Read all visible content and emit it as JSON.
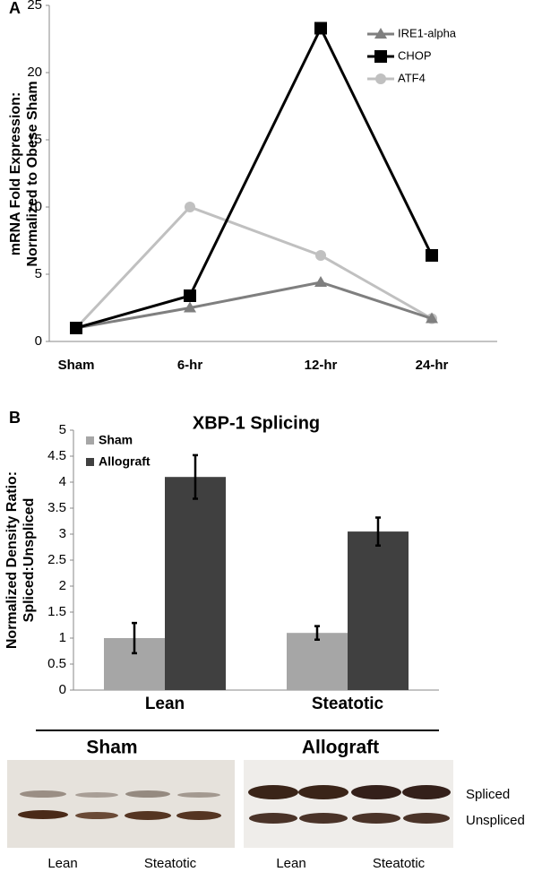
{
  "chart_data": [
    {
      "type": "line",
      "panel": "A",
      "y_label": [
        "mRNA Fold Expression:",
        "Normalized to Obese Sham"
      ],
      "categories": [
        "Sham",
        "6-hr",
        "12-hr",
        "24-hr"
      ],
      "series": [
        {
          "name": "IRE1-alpha",
          "color": "#7f7f7f",
          "marker": "triangle",
          "values": [
            1,
            2.5,
            4.4,
            1.7
          ]
        },
        {
          "name": "CHOP",
          "color": "#000000",
          "marker": "square",
          "values": [
            1,
            3.4,
            23.3,
            6.4
          ]
        },
        {
          "name": "ATF4",
          "color": "#c0c0c0",
          "marker": "circle",
          "values": [
            1,
            10,
            6.4,
            1.7
          ]
        }
      ],
      "ylim": [
        0,
        25
      ],
      "yticks": [
        0,
        5,
        10,
        15,
        20,
        25
      ]
    },
    {
      "type": "bar",
      "panel": "B",
      "title": "XBP-1 Splicing",
      "y_label": [
        "Normalized Density Ratio:",
        "Spliced:Unspliced"
      ],
      "categories": [
        "Lean",
        "Steatotic"
      ],
      "series": [
        {
          "name": "Sham",
          "color": "#a6a6a6",
          "values": [
            1.0,
            1.1
          ],
          "errors": [
            0.29,
            0.13
          ]
        },
        {
          "name": "Allograft",
          "color": "#404040",
          "values": [
            4.1,
            3.05
          ],
          "errors": [
            0.42,
            0.27
          ]
        }
      ],
      "ylim": [
        0,
        5
      ],
      "yticks": [
        0,
        0.5,
        1,
        1.5,
        2,
        2.5,
        3,
        3.5,
        4,
        4.5,
        5
      ]
    }
  ],
  "blot": {
    "groups": [
      "Sham",
      "Allograft"
    ],
    "bands": [
      "Spliced",
      "Unspliced"
    ],
    "lanes": [
      "Lean",
      "Steatotic",
      "Lean",
      "Steatotic"
    ]
  }
}
